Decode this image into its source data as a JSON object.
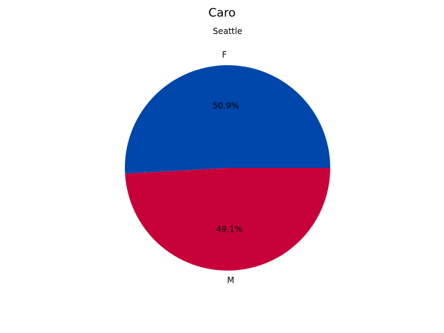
{
  "chart_data": {
    "type": "pie",
    "title": "Caro",
    "subtitle": "Seattle",
    "slices": [
      {
        "label": "F",
        "value": 50.9,
        "percent_label": "50.9%",
        "color": "#0047AB"
      },
      {
        "label": "M",
        "value": 49.1,
        "percent_label": "49.1%",
        "color": "#C8003A"
      }
    ],
    "start_angle_deg": 0,
    "direction": "counterclockwise"
  }
}
